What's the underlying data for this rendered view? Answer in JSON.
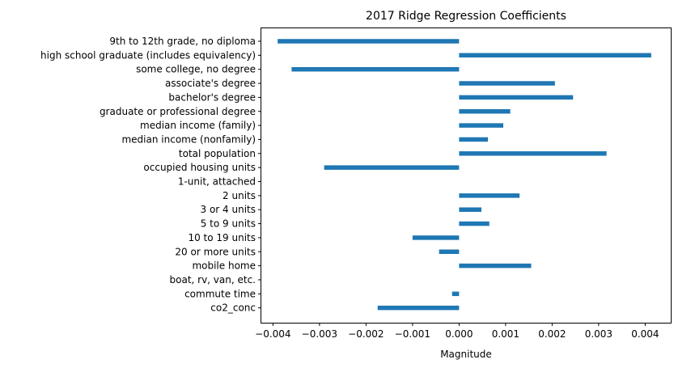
{
  "chart_data": {
    "type": "bar",
    "orientation": "horizontal",
    "title": "2017 Ridge Regression Coefficients",
    "xlabel": "Magnitude",
    "ylabel": "",
    "xlim": [
      -0.00425,
      0.00455
    ],
    "grid": false,
    "legend": "none",
    "bar_color": "#1f77b4",
    "xticks": [
      -0.004,
      -0.003,
      -0.002,
      -0.001,
      0.0,
      0.001,
      0.002,
      0.003,
      0.004
    ],
    "xtick_labels": [
      "−0.004",
      "−0.003",
      "−0.002",
      "−0.001",
      "0.000",
      "0.001",
      "0.002",
      "0.003",
      "0.004"
    ],
    "categories": [
      "9th to 12th grade, no diploma",
      "high school graduate (includes equivalency)",
      "some college, no degree",
      "associate's degree",
      "bachelor's degree",
      "graduate or professional degree",
      "median income (family)",
      "median income (nonfamily)",
      "total population",
      "occupied housing units",
      "1-unit, attached",
      "2 units",
      "3 or 4 units",
      "5 to 9 units",
      "10 to 19 units",
      "20 or more units",
      "mobile home",
      "boat, rv, van, etc.",
      "commute time",
      "co2_conc"
    ],
    "values": [
      -0.0039,
      0.00413,
      -0.0036,
      0.00206,
      0.00245,
      0.0011,
      0.00095,
      0.00062,
      0.00317,
      -0.0029,
      0.0,
      0.0013,
      0.00048,
      0.00065,
      -0.001,
      -0.00043,
      0.00155,
      0.0,
      -0.00015,
      -0.00175
    ]
  }
}
